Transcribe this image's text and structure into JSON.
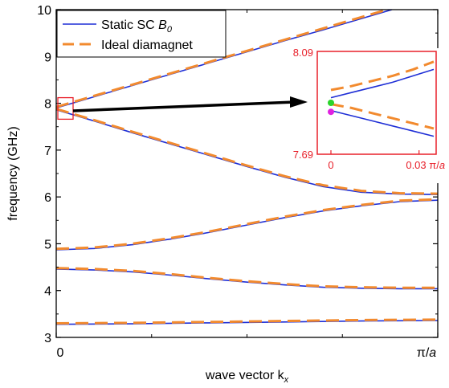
{
  "chart_data": {
    "type": "line",
    "xlabel_main": "wave vector k",
    "xlabel_sub": "x",
    "ylabel": "frequency (GHz)",
    "xlim": [
      0,
      1
    ],
    "ylim": [
      3,
      10
    ],
    "x_ticks": [
      {
        "value": 0,
        "label": "0",
        "italic": ""
      },
      {
        "value": 1,
        "label": "π/",
        "italic": "a"
      }
    ],
    "y_ticks": [
      3,
      4,
      5,
      6,
      7,
      8,
      9,
      10
    ],
    "legend": {
      "position": "top-left",
      "entries": [
        {
          "label": "Static SC ",
          "italic": "B",
          "sub": "0",
          "style": "solid",
          "color": "#1f2fd6"
        },
        {
          "label": "Ideal diamagnet",
          "italic": "",
          "sub": "",
          "style": "dashed",
          "color": "#f28a2e"
        }
      ]
    },
    "series": [
      {
        "name": "Static SC B0",
        "style": "solid",
        "color": "#1f2fd6",
        "bands": [
          {
            "x": [
              0,
              0.1,
              0.2,
              0.3,
              0.4,
              0.5,
              0.6,
              0.7,
              0.8,
              0.88
            ],
            "y": [
              7.9,
              8.14,
              8.38,
              8.62,
              8.86,
              9.1,
              9.34,
              9.57,
              9.81,
              10.0
            ]
          },
          {
            "x": [
              0,
              0.1,
              0.2,
              0.3,
              0.4,
              0.5,
              0.6,
              0.7,
              0.8,
              0.9,
              1.0
            ],
            "y": [
              7.86,
              7.62,
              7.37,
              7.13,
              6.89,
              6.65,
              6.42,
              6.22,
              6.1,
              6.06,
              6.05
            ]
          },
          {
            "x": [
              0,
              0.1,
              0.2,
              0.3,
              0.4,
              0.5,
              0.6,
              0.7,
              0.8,
              0.9,
              1.0
            ],
            "y": [
              4.87,
              4.9,
              4.98,
              5.1,
              5.24,
              5.4,
              5.56,
              5.7,
              5.81,
              5.9,
              5.93
            ]
          },
          {
            "x": [
              0,
              0.1,
              0.2,
              0.3,
              0.4,
              0.5,
              0.6,
              0.7,
              0.8,
              0.9,
              1.0
            ],
            "y": [
              4.46,
              4.44,
              4.4,
              4.33,
              4.25,
              4.18,
              4.12,
              4.07,
              4.05,
              4.04,
              4.04
            ]
          },
          {
            "x": [
              0,
              0.2,
              0.4,
              0.6,
              0.8,
              1.0
            ],
            "y": [
              3.28,
              3.29,
              3.31,
              3.33,
              3.35,
              3.36
            ]
          }
        ]
      },
      {
        "name": "Ideal diamagnet",
        "style": "dashed",
        "color": "#f28a2e",
        "bands": [
          {
            "x": [
              0,
              0.1,
              0.2,
              0.3,
              0.4,
              0.5,
              0.6,
              0.7,
              0.8,
              0.88
            ],
            "y": [
              7.92,
              8.16,
              8.4,
              8.64,
              8.88,
              9.12,
              9.36,
              9.6,
              9.84,
              10.03
            ]
          },
          {
            "x": [
              0,
              0.1,
              0.2,
              0.3,
              0.4,
              0.5,
              0.6,
              0.7,
              0.8,
              0.9,
              1.0
            ],
            "y": [
              7.88,
              7.64,
              7.39,
              7.15,
              6.91,
              6.67,
              6.44,
              6.25,
              6.13,
              6.08,
              6.07
            ]
          },
          {
            "x": [
              0,
              0.1,
              0.2,
              0.3,
              0.4,
              0.5,
              0.6,
              0.7,
              0.8,
              0.9,
              1.0
            ],
            "y": [
              4.89,
              4.92,
              5.0,
              5.12,
              5.26,
              5.42,
              5.58,
              5.72,
              5.83,
              5.92,
              5.95
            ]
          },
          {
            "x": [
              0,
              0.1,
              0.2,
              0.3,
              0.4,
              0.5,
              0.6,
              0.7,
              0.8,
              0.9,
              1.0
            ],
            "y": [
              4.48,
              4.46,
              4.42,
              4.35,
              4.27,
              4.2,
              4.14,
              4.09,
              4.07,
              4.06,
              4.06
            ]
          },
          {
            "x": [
              0,
              0.2,
              0.4,
              0.6,
              0.8,
              1.0
            ],
            "y": [
              3.3,
              3.31,
              3.33,
              3.35,
              3.37,
              3.38
            ]
          }
        ]
      }
    ],
    "inset": {
      "position": "right",
      "frame_color": "#e8202a",
      "xlim": [
        0,
        0.035
      ],
      "ylim": [
        7.69,
        8.09
      ],
      "y_ticks": [
        {
          "value": 8.09,
          "label": "8.09"
        },
        {
          "value": 7.69,
          "label": "7.69"
        }
      ],
      "x_ticks": [
        {
          "value": 0,
          "label": "0",
          "italic": ""
        },
        {
          "value": 0.03,
          "label": "0.03 π/",
          "italic": "a"
        }
      ],
      "series": [
        {
          "name": "Static SC B0 upper",
          "style": "solid",
          "color": "#1f2fd6",
          "x": [
            0,
            0.007,
            0.014,
            0.021,
            0.028,
            0.035
          ],
          "y": [
            7.91,
            7.93,
            7.95,
            7.97,
            7.995,
            8.02
          ]
        },
        {
          "name": "Static SC B0 lower",
          "style": "solid",
          "color": "#1f2fd6",
          "x": [
            0,
            0.007,
            0.014,
            0.021,
            0.028,
            0.035
          ],
          "y": [
            7.86,
            7.84,
            7.82,
            7.8,
            7.78,
            7.76
          ]
        },
        {
          "name": "Ideal diamagnet upper",
          "style": "dashed",
          "color": "#f28a2e",
          "x": [
            0,
            0.007,
            0.014,
            0.021,
            0.028,
            0.035
          ],
          "y": [
            7.94,
            7.955,
            7.975,
            7.995,
            8.02,
            8.05
          ]
        },
        {
          "name": "Ideal diamagnet lower",
          "style": "dashed",
          "color": "#f28a2e",
          "x": [
            0,
            0.007,
            0.014,
            0.021,
            0.028,
            0.035
          ],
          "y": [
            7.885,
            7.87,
            7.85,
            7.83,
            7.81,
            7.79
          ]
        }
      ],
      "points": [
        {
          "x": 0,
          "y": 7.89,
          "color": "#2bd42b"
        },
        {
          "x": 0,
          "y": 7.855,
          "color": "#e020e0"
        }
      ]
    },
    "zoom_box": {
      "x0": 0,
      "x1": 0.04,
      "y0": 7.66,
      "y1": 8.12,
      "color": "#e8202a"
    }
  }
}
